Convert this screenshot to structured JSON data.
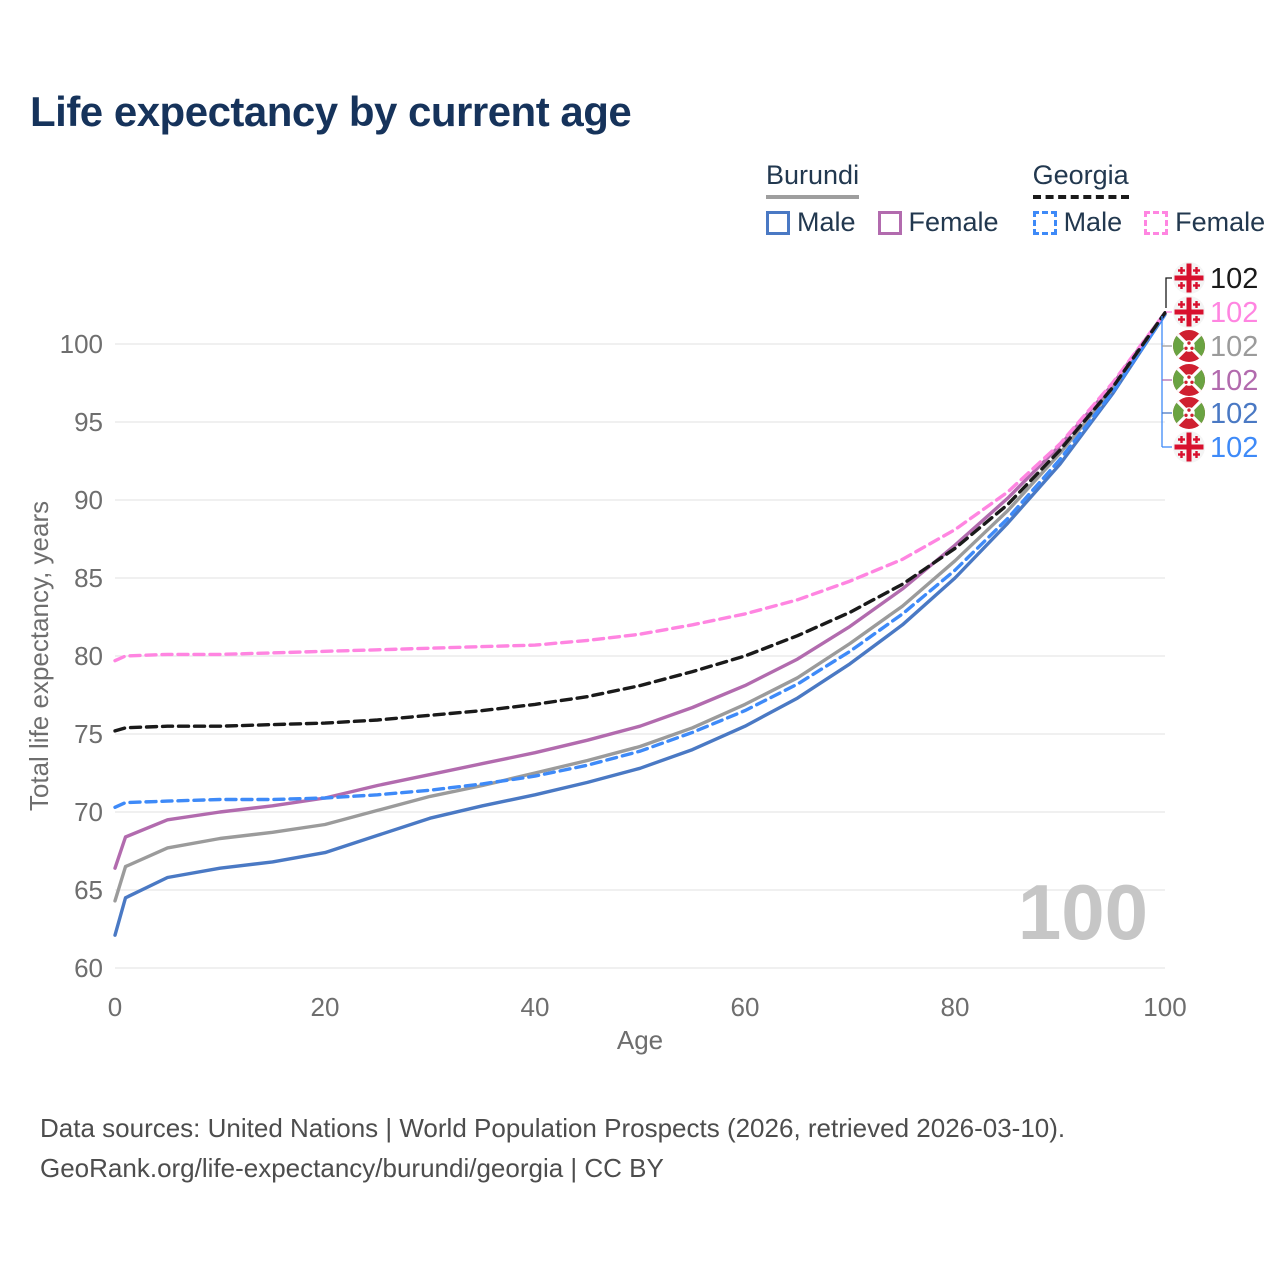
{
  "title": "Life expectancy by current age",
  "legend": {
    "groups": [
      {
        "name": "Burundi",
        "line_style": "solid",
        "underline_color": "#9e9e9e",
        "items": [
          {
            "label": "Male",
            "color": "#4a79c4"
          },
          {
            "label": "Female",
            "color": "#b26bae"
          }
        ]
      },
      {
        "name": "Georgia",
        "line_style": "dashed",
        "underline_color": "#1a1a1a",
        "items": [
          {
            "label": "Male",
            "color": "#3e8af8"
          },
          {
            "label": "Female",
            "color": "#ff85e1"
          }
        ]
      }
    ]
  },
  "chart_data": {
    "type": "line",
    "title": "Life expectancy by current age",
    "xlabel": "Age",
    "ylabel": "Total life expectancy, years",
    "xlim": [
      0,
      100
    ],
    "ylim": [
      60,
      102.5
    ],
    "xticks": [
      0,
      20,
      40,
      60,
      80,
      100
    ],
    "yticks": [
      60,
      65,
      70,
      75,
      80,
      85,
      90,
      95,
      100
    ],
    "grid": true,
    "legend_position": "top-right",
    "watermark": "100",
    "watermark_color": "#c6c6c6",
    "gridline_color": "#e8e8e8",
    "axis_text_color": "#6e6e6e",
    "x": [
      0,
      1,
      5,
      10,
      15,
      20,
      25,
      30,
      35,
      40,
      45,
      50,
      55,
      60,
      65,
      70,
      75,
      80,
      85,
      90,
      95,
      100
    ],
    "series": [
      {
        "name": "Burundi Male",
        "country": "Burundi",
        "sex": "Male",
        "color": "#4a79c4",
        "dashed": false,
        "y": [
          62.1,
          64.5,
          65.8,
          66.4,
          66.8,
          67.4,
          68.5,
          69.6,
          70.4,
          71.1,
          71.9,
          72.8,
          74.0,
          75.5,
          77.3,
          79.5,
          82.0,
          85.0,
          88.5,
          92.3,
          96.8,
          101.9
        ]
      },
      {
        "name": "Burundi Female",
        "country": "Burundi",
        "sex": "Female",
        "color": "#b26bae",
        "dashed": false,
        "y": [
          66.4,
          68.4,
          69.5,
          70.0,
          70.4,
          70.9,
          71.7,
          72.4,
          73.1,
          73.8,
          74.6,
          75.5,
          76.7,
          78.1,
          79.8,
          81.9,
          84.3,
          87.1,
          90.1,
          93.5,
          97.4,
          102.0
        ]
      },
      {
        "name": "Burundi",
        "country": "Burundi",
        "sex": "Total",
        "color": "#9b9b9b",
        "dashed": false,
        "y": [
          64.3,
          66.5,
          67.7,
          68.3,
          68.7,
          69.2,
          70.1,
          71.0,
          71.7,
          72.5,
          73.3,
          74.2,
          75.4,
          76.9,
          78.6,
          80.8,
          83.2,
          86.1,
          89.3,
          93.0,
          97.1,
          102.0
        ]
      },
      {
        "name": "Georgia Male",
        "country": "Georgia",
        "sex": "Male",
        "color": "#3e8af8",
        "dashed": true,
        "y": [
          70.3,
          70.6,
          70.7,
          70.8,
          70.8,
          70.9,
          71.1,
          71.4,
          71.8,
          72.3,
          73.0,
          73.9,
          75.1,
          76.5,
          78.2,
          80.3,
          82.7,
          85.5,
          88.8,
          92.6,
          96.9,
          101.9
        ]
      },
      {
        "name": "Georgia Female",
        "country": "Georgia",
        "sex": "Female",
        "color": "#ff85e1",
        "dashed": true,
        "y": [
          79.7,
          80.0,
          80.1,
          80.1,
          80.2,
          80.3,
          80.4,
          80.5,
          80.6,
          80.7,
          81.0,
          81.4,
          82.0,
          82.7,
          83.6,
          84.8,
          86.2,
          88.1,
          90.5,
          93.6,
          97.5,
          102.0
        ]
      },
      {
        "name": "Georgia",
        "country": "Georgia",
        "sex": "Total",
        "color": "#1a1a1a",
        "dashed": true,
        "y": [
          75.2,
          75.4,
          75.5,
          75.5,
          75.6,
          75.7,
          75.9,
          76.2,
          76.5,
          76.9,
          77.4,
          78.1,
          79.0,
          80.0,
          81.3,
          82.8,
          84.6,
          86.9,
          89.7,
          93.2,
          97.2,
          102.0
        ]
      }
    ],
    "end_labels": [
      {
        "value": "102",
        "series": "Georgia",
        "flag": "georgia",
        "color": "#1a1a1a"
      },
      {
        "value": "102",
        "series": "Georgia Female",
        "flag": "georgia",
        "color": "#ff85e1"
      },
      {
        "value": "102",
        "series": "Burundi",
        "flag": "burundi",
        "color": "#9b9b9b"
      },
      {
        "value": "102",
        "series": "Burundi Female",
        "flag": "burundi",
        "color": "#b26bae"
      },
      {
        "value": "102",
        "series": "Burundi Male",
        "flag": "burundi",
        "color": "#4a79c4"
      },
      {
        "value": "102",
        "series": "Georgia Male",
        "flag": "georgia",
        "color": "#3e8af8"
      }
    ],
    "flag_colors": {
      "georgia_red": "#d8102e",
      "georgia_bg": "#f4f4f4",
      "burundi_red": "#cf2030",
      "burundi_green": "#6aa342"
    }
  },
  "footer": {
    "line1": "Data sources: United Nations | World Population Prospects (2026, retrieved 2026-03-10).",
    "line2": "GeoRank.org/life-expectancy/burundi/georgia | CC BY"
  }
}
